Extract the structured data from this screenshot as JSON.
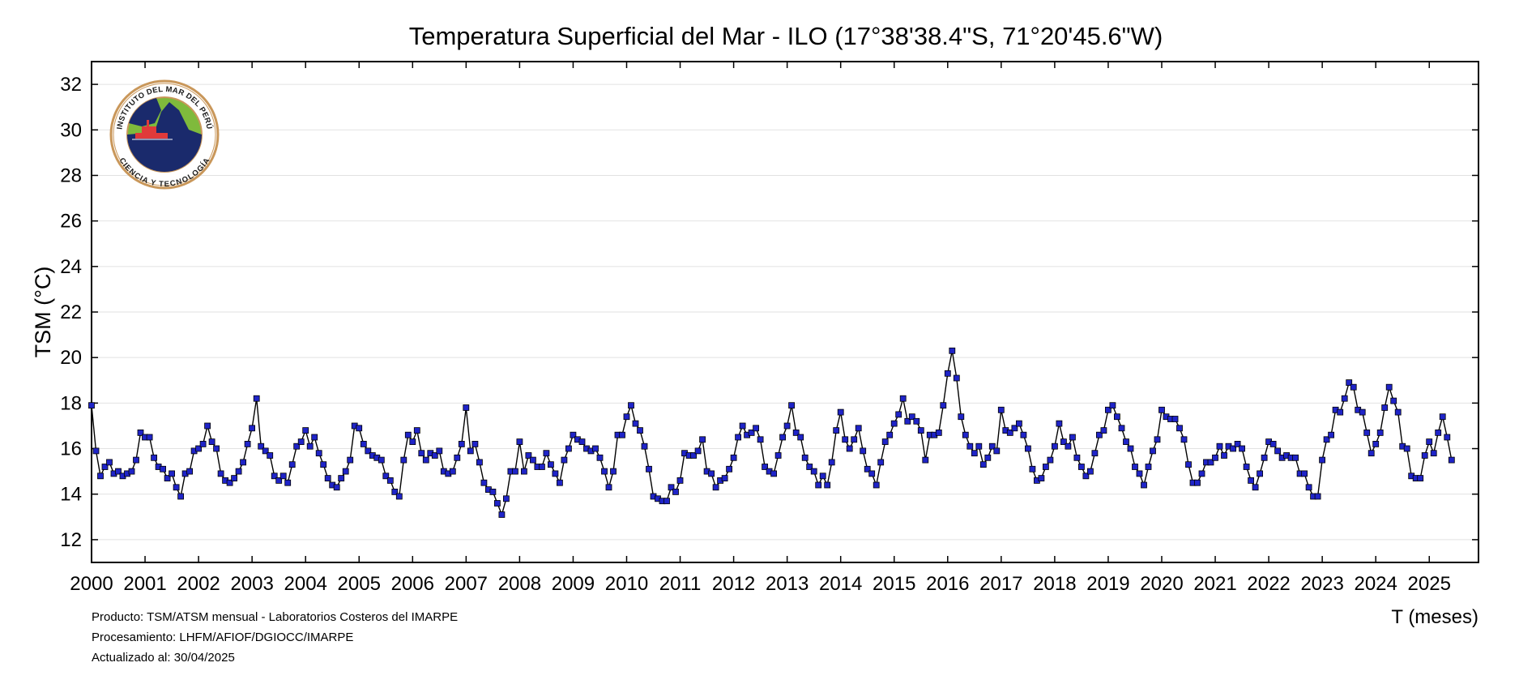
{
  "chart_data": {
    "type": "line",
    "title": "Temperatura Superficial del Mar - ILO (17°38'38.4\"S, 71°20'45.6\"W)",
    "xlabel": "T (meses)",
    "ylabel": "TSM (°C)",
    "xlim": [
      2000.0,
      2025.92
    ],
    "ylim": [
      11,
      33
    ],
    "y_ticks": [
      12,
      14,
      16,
      18,
      20,
      22,
      24,
      26,
      28,
      30,
      32
    ],
    "x_ticks": [
      2000,
      2001,
      2002,
      2003,
      2004,
      2005,
      2006,
      2007,
      2008,
      2009,
      2010,
      2011,
      2012,
      2013,
      2014,
      2015,
      2016,
      2017,
      2018,
      2019,
      2020,
      2021,
      2022,
      2023,
      2024,
      2025
    ],
    "x_start": "2000-01",
    "grid": "horizontal",
    "line_color": "#000000",
    "marker_color": "#1f24c8",
    "marker_edge_color": "#000000",
    "series": [
      {
        "values": [
          17.9,
          15.9,
          14.8,
          15.2,
          15.4,
          14.9,
          15.0,
          14.8,
          14.9,
          15.0,
          15.5,
          16.7,
          16.5,
          16.5,
          15.6,
          15.2,
          15.1,
          14.7,
          14.9,
          14.3,
          13.9,
          14.9,
          15.0,
          15.9,
          16.0,
          16.2,
          17.0,
          16.3,
          16.0,
          14.9,
          14.6,
          14.5,
          14.7,
          15.0,
          15.4,
          16.2,
          16.9,
          18.2,
          16.1,
          15.9,
          15.7,
          14.8,
          14.6,
          14.8,
          14.5,
          15.3,
          16.1,
          16.3,
          16.8,
          16.1,
          16.5,
          15.8,
          15.3,
          14.7,
          14.4,
          14.3,
          14.7,
          15.0,
          15.5,
          17.0,
          16.9,
          16.2,
          15.9,
          15.7,
          15.6,
          15.5,
          14.8,
          14.6,
          14.1,
          13.9,
          15.5,
          16.6,
          16.3,
          16.8,
          15.8,
          15.5,
          15.8,
          15.7,
          15.9,
          15.0,
          14.9,
          15.0,
          15.6,
          16.2,
          17.8,
          15.9,
          16.2,
          15.4,
          14.5,
          14.2,
          14.1,
          13.6,
          13.1,
          13.8,
          15.0,
          15.0,
          16.3,
          15.0,
          15.7,
          15.5,
          15.2,
          15.2,
          15.8,
          15.3,
          14.9,
          14.5,
          15.5,
          16.0,
          16.6,
          16.4,
          16.3,
          16.0,
          15.9,
          16.0,
          15.6,
          15.0,
          14.3,
          15.0,
          16.6,
          16.6,
          17.4,
          17.9,
          17.1,
          16.8,
          16.1,
          15.1,
          13.9,
          13.8,
          13.7,
          13.7,
          14.3,
          14.1,
          14.6,
          15.8,
          15.7,
          15.7,
          15.9,
          16.4,
          15.0,
          14.9,
          14.3,
          14.6,
          14.7,
          15.1,
          15.6,
          16.5,
          17.0,
          16.6,
          16.7,
          16.9,
          16.4,
          15.2,
          15.0,
          14.9,
          15.7,
          16.5,
          17.0,
          17.9,
          16.7,
          16.5,
          15.6,
          15.2,
          15.0,
          14.4,
          14.8,
          14.4,
          15.4,
          16.8,
          17.6,
          16.4,
          16.0,
          16.4,
          16.9,
          15.9,
          15.1,
          14.9,
          14.4,
          15.4,
          16.3,
          16.6,
          17.1,
          17.5,
          18.2,
          17.2,
          17.4,
          17.2,
          16.8,
          15.5,
          16.6,
          16.6,
          16.7,
          17.9,
          19.3,
          20.3,
          19.1,
          17.4,
          16.6,
          16.1,
          15.8,
          16.1,
          15.3,
          15.6,
          16.1,
          15.9,
          17.7,
          16.8,
          16.7,
          16.9,
          17.1,
          16.6,
          16.0,
          15.1,
          14.6,
          14.7,
          15.2,
          15.5,
          16.1,
          17.1,
          16.3,
          16.1,
          16.5,
          15.6,
          15.2,
          14.8,
          15.0,
          15.8,
          16.6,
          16.8,
          17.7,
          17.9,
          17.4,
          16.9,
          16.3,
          16.0,
          15.2,
          14.9,
          14.4,
          15.2,
          15.9,
          16.4,
          17.7,
          17.4,
          17.3,
          17.3,
          16.9,
          16.4,
          15.3,
          14.5,
          14.5,
          14.9,
          15.4,
          15.4,
          15.6,
          16.1,
          15.7,
          16.1,
          16.0,
          16.2,
          16.0,
          15.2,
          14.6,
          14.3,
          14.9,
          15.6,
          16.3,
          16.2,
          15.9,
          15.6,
          15.7,
          15.6,
          15.6,
          14.9,
          14.9,
          14.3,
          13.9,
          13.9,
          15.5,
          16.4,
          16.6,
          17.7,
          17.6,
          18.2,
          18.9,
          18.7,
          17.7,
          17.6,
          16.7,
          15.8,
          16.2,
          16.7,
          17.8,
          18.7,
          18.1,
          17.6,
          16.1,
          16.0,
          14.8,
          14.7,
          14.7,
          15.7,
          16.3,
          15.8,
          16.7,
          17.4,
          16.5,
          15.5
        ]
      }
    ]
  },
  "logo": {
    "top_text": "INSTITUTO DEL MAR DEL PERÚ",
    "bottom_text": "CIENCIA Y TECNOLOGÍA",
    "ring_color": "#c9975a",
    "ocean_color": "#1a2a6c",
    "land_color": "#7fba3c",
    "ship_color": "#e03a3a"
  },
  "footer": {
    "line1": "Producto: TSM/ATSM mensual - Laboratorios Costeros del IMARPE",
    "line2": "Procesamiento: LHFM/AFIOF/DGIOCC/IMARPE",
    "line3": "Actualizado al: 30/04/2025"
  }
}
